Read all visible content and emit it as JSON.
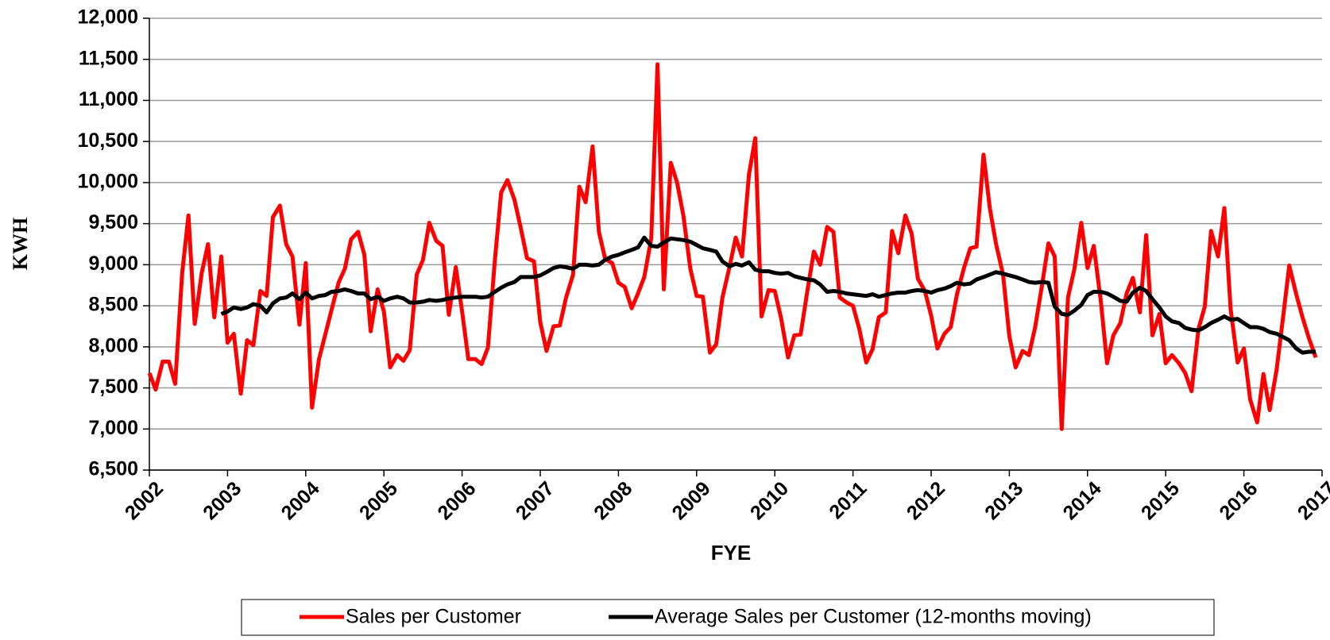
{
  "chart_data": {
    "type": "line",
    "x_label": "FYE",
    "y_label": "KWH",
    "x": [
      2002.0,
      2002.08,
      2002.17,
      2002.25,
      2002.33,
      2002.42,
      2002.5,
      2002.58,
      2002.67,
      2002.75,
      2002.83,
      2002.92,
      2003.0,
      2003.08,
      2003.17,
      2003.25,
      2003.33,
      2003.42,
      2003.5,
      2003.58,
      2003.67,
      2003.75,
      2003.83,
      2003.92,
      2004.0,
      2004.08,
      2004.17,
      2004.25,
      2004.33,
      2004.42,
      2004.5,
      2004.58,
      2004.67,
      2004.75,
      2004.83,
      2004.92,
      2005.0,
      2005.08,
      2005.17,
      2005.25,
      2005.33,
      2005.42,
      2005.5,
      2005.58,
      2005.67,
      2005.75,
      2005.83,
      2005.92,
      2006.0,
      2006.08,
      2006.17,
      2006.25,
      2006.33,
      2006.42,
      2006.5,
      2006.58,
      2006.67,
      2006.75,
      2006.83,
      2006.92,
      2007.0,
      2007.08,
      2007.17,
      2007.25,
      2007.33,
      2007.42,
      2007.5,
      2007.58,
      2007.67,
      2007.75,
      2007.83,
      2007.92,
      2008.0,
      2008.08,
      2008.17,
      2008.25,
      2008.33,
      2008.42,
      2008.5,
      2008.58,
      2008.67,
      2008.75,
      2008.83,
      2008.92,
      2009.0,
      2009.08,
      2009.17,
      2009.25,
      2009.33,
      2009.42,
      2009.5,
      2009.58,
      2009.67,
      2009.75,
      2009.83,
      2009.92,
      2010.0,
      2010.08,
      2010.17,
      2010.25,
      2010.33,
      2010.42,
      2010.5,
      2010.58,
      2010.67,
      2010.75,
      2010.83,
      2010.92,
      2011.0,
      2011.08,
      2011.17,
      2011.25,
      2011.33,
      2011.42,
      2011.5,
      2011.58,
      2011.67,
      2011.75,
      2011.83,
      2011.92,
      2012.0,
      2012.08,
      2012.17,
      2012.25,
      2012.33,
      2012.42,
      2012.5,
      2012.58,
      2012.67,
      2012.75,
      2012.83,
      2012.92,
      2013.0,
      2013.08,
      2013.17,
      2013.25,
      2013.33,
      2013.42,
      2013.5,
      2013.58,
      2013.67,
      2013.75,
      2013.83,
      2013.92,
      2014.0,
      2014.08,
      2014.17,
      2014.25,
      2014.33,
      2014.42,
      2014.5,
      2014.58,
      2014.67,
      2014.75,
      2014.83,
      2014.92,
      2015.0,
      2015.08,
      2015.17,
      2015.25,
      2015.33,
      2015.42,
      2015.5,
      2015.58,
      2015.67,
      2015.75,
      2015.83,
      2015.92,
      2016.0,
      2016.08,
      2016.17,
      2016.25,
      2016.33,
      2016.42,
      2016.5,
      2016.58,
      2016.67,
      2016.75,
      2016.83,
      2016.92
    ],
    "series": [
      {
        "name": "Sales per Customer",
        "color": "#ff0000",
        "values": [
          7680,
          7480,
          7820,
          7820,
          7550,
          8900,
          9600,
          8280,
          8900,
          9250,
          8360,
          9100,
          8050,
          8160,
          7430,
          8080,
          8020,
          8680,
          8620,
          9580,
          9720,
          9250,
          9100,
          8270,
          9020,
          7260,
          7850,
          8150,
          8450,
          8780,
          8950,
          9310,
          9400,
          9120,
          8190,
          8700,
          8430,
          7750,
          7900,
          7830,
          7960,
          8880,
          9060,
          9510,
          9290,
          9230,
          8390,
          8970,
          8430,
          7850,
          7850,
          7790,
          7990,
          9060,
          9880,
          10030,
          9790,
          9450,
          9080,
          9040,
          8300,
          7950,
          8250,
          8260,
          8600,
          8880,
          9950,
          9760,
          10440,
          9400,
          9070,
          9020,
          8780,
          8730,
          8470,
          8650,
          8850,
          9320,
          11440,
          8700,
          10240,
          10000,
          9600,
          8950,
          8620,
          8610,
          7930,
          8030,
          8600,
          8970,
          9330,
          9100,
          10100,
          10540,
          8370,
          8690,
          8680,
          8350,
          7870,
          8140,
          8150,
          8700,
          9160,
          9000,
          9460,
          9400,
          8600,
          8540,
          8500,
          8220,
          7810,
          7970,
          8360,
          8420,
          9410,
          9140,
          9600,
          9380,
          8830,
          8680,
          8380,
          7980,
          8160,
          8240,
          8640,
          8960,
          9200,
          9220,
          10340,
          9690,
          9250,
          8880,
          8130,
          7750,
          7950,
          7900,
          8240,
          8760,
          9260,
          9100,
          7000,
          8600,
          8940,
          9510,
          8960,
          9230,
          8560,
          7800,
          8140,
          8290,
          8650,
          8840,
          8420,
          9360,
          8140,
          8400,
          7800,
          7900,
          7800,
          7680,
          7460,
          8220,
          8490,
          9410,
          9100,
          9690,
          8460,
          7810,
          7980,
          7360,
          7080,
          7670,
          7230,
          7730,
          8350,
          8990,
          8640,
          8360,
          8110,
          7870
        ]
      },
      {
        "name": "Average Sales per Customer (12-months moving)",
        "color": "#000000",
        "values": [
          null,
          null,
          null,
          null,
          null,
          null,
          null,
          null,
          null,
          null,
          null,
          8400,
          8430,
          8480,
          8460,
          8480,
          8520,
          8500,
          8420,
          8530,
          8590,
          8600,
          8650,
          8580,
          8660,
          8590,
          8620,
          8630,
          8670,
          8680,
          8700,
          8680,
          8650,
          8650,
          8580,
          8610,
          8560,
          8590,
          8610,
          8590,
          8540,
          8540,
          8550,
          8570,
          8560,
          8570,
          8590,
          8600,
          8610,
          8610,
          8610,
          8600,
          8610,
          8670,
          8720,
          8760,
          8790,
          8850,
          8850,
          8850,
          8870,
          8910,
          8960,
          8980,
          8970,
          8950,
          9000,
          9000,
          8990,
          9000,
          9060,
          9100,
          9120,
          9150,
          9180,
          9210,
          9330,
          9230,
          9220,
          9270,
          9320,
          9310,
          9300,
          9280,
          9240,
          9200,
          9180,
          9160,
          9040,
          8980,
          9010,
          8990,
          9030,
          8940,
          8920,
          8920,
          8900,
          8890,
          8900,
          8860,
          8840,
          8820,
          8810,
          8760,
          8670,
          8680,
          8670,
          8650,
          8640,
          8630,
          8620,
          8640,
          8610,
          8630,
          8650,
          8660,
          8660,
          8680,
          8690,
          8680,
          8660,
          8690,
          8710,
          8740,
          8780,
          8760,
          8770,
          8820,
          8850,
          8880,
          8910,
          8890,
          8870,
          8850,
          8820,
          8790,
          8780,
          8790,
          8780,
          8490,
          8400,
          8390,
          8440,
          8510,
          8630,
          8670,
          8670,
          8650,
          8610,
          8560,
          8550,
          8660,
          8720,
          8680,
          8580,
          8480,
          8370,
          8310,
          8290,
          8230,
          8210,
          8200,
          8240,
          8290,
          8330,
          8370,
          8330,
          8340,
          8290,
          8240,
          8240,
          8220,
          8180,
          8160,
          8120,
          8080,
          7980,
          7930,
          7940,
          7940
        ]
      }
    ],
    "xlim": [
      2002,
      2017
    ],
    "xticks": [
      2002,
      2003,
      2004,
      2005,
      2006,
      2007,
      2008,
      2009,
      2010,
      2011,
      2012,
      2013,
      2014,
      2015,
      2016,
      2017
    ],
    "ylim": [
      6500,
      12000
    ],
    "yticks": [
      {
        "value": 6500,
        "label": "6,500"
      },
      {
        "value": 7000,
        "label": "7,000"
      },
      {
        "value": 7500,
        "label": "7,500"
      },
      {
        "value": 8000,
        "label": "8,000"
      },
      {
        "value": 8500,
        "label": "8,500"
      },
      {
        "value": 9000,
        "label": "9,000"
      },
      {
        "value": 9500,
        "label": "9,500"
      },
      {
        "value": 10000,
        "label": "10,000"
      },
      {
        "value": 10500,
        "label": "10,500"
      },
      {
        "value": 11000,
        "label": "11,000"
      },
      {
        "value": 11500,
        "label": "11,500"
      },
      {
        "value": 12000,
        "label": "12,000"
      }
    ],
    "grid": true,
    "legend": "bottom"
  }
}
